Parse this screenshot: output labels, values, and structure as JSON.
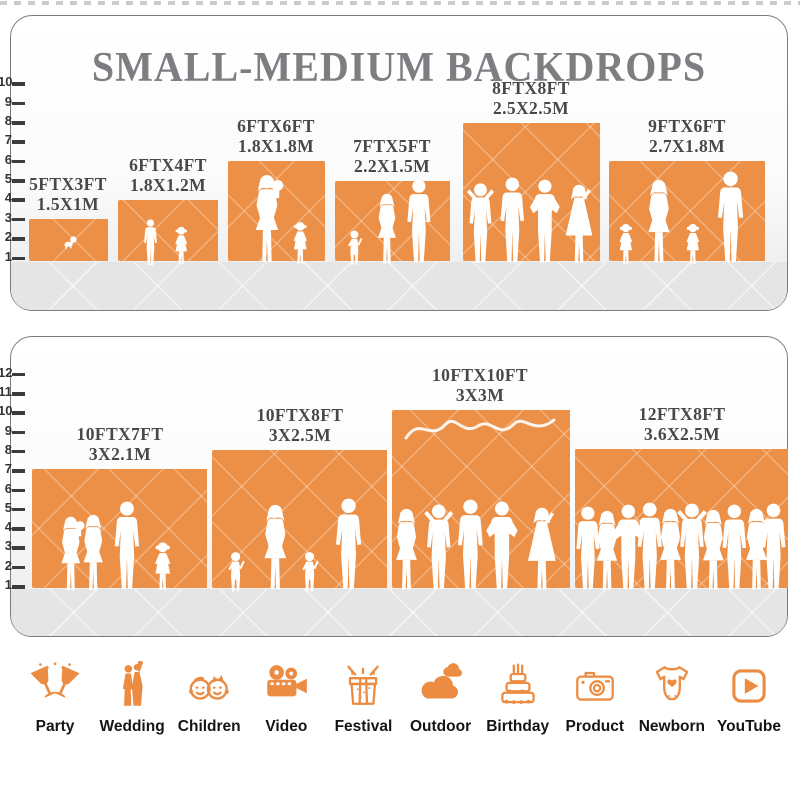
{
  "title": "SMALL-MEDIUM BACKDROPS",
  "top_panel": {
    "ruler_ticks": [
      "1",
      "2",
      "3",
      "4",
      "5",
      "6",
      "7",
      "8",
      "9",
      "10"
    ],
    "items": [
      {
        "size_ft": "5FTX3FT",
        "size_m": "1.5X1M"
      },
      {
        "size_ft": "6FTX4FT",
        "size_m": "1.8X1.2M"
      },
      {
        "size_ft": "6FTX6FT",
        "size_m": "1.8X1.8M"
      },
      {
        "size_ft": "7FTX5FT",
        "size_m": "2.2X1.5M"
      },
      {
        "size_ft": "8FTX8FT",
        "size_m": "2.5X2.5M"
      },
      {
        "size_ft": "9FTX6FT",
        "size_m": "2.7X1.8M"
      }
    ]
  },
  "bottom_panel": {
    "ruler_ticks": [
      "1",
      "2",
      "3",
      "4",
      "5",
      "6",
      "7",
      "8",
      "9",
      "10",
      "11",
      "12"
    ],
    "items": [
      {
        "size_ft": "10FTX7FT",
        "size_m": "3X2.1M"
      },
      {
        "size_ft": "10FTX8FT",
        "size_m": "3X2.5M"
      },
      {
        "size_ft": "10FTX10FT",
        "size_m": "3X3M"
      },
      {
        "size_ft": "12FTX8FT",
        "size_m": "3.6X2.5M"
      }
    ]
  },
  "categories": [
    {
      "label": "Party",
      "icon": "party-glasses-icon"
    },
    {
      "label": "Wedding",
      "icon": "wedding-couple-icon"
    },
    {
      "label": "Children",
      "icon": "children-faces-icon"
    },
    {
      "label": "Video",
      "icon": "video-camera-icon"
    },
    {
      "label": "Festival",
      "icon": "festival-gift-icon"
    },
    {
      "label": "Outdoor",
      "icon": "outdoor-cloud-icon"
    },
    {
      "label": "Birthday",
      "icon": "birthday-cake-icon"
    },
    {
      "label": "Product",
      "icon": "product-camera-icon"
    },
    {
      "label": "Newborn",
      "icon": "newborn-onesie-icon"
    },
    {
      "label": "YouTube",
      "icon": "youtube-play-icon"
    }
  ],
  "colors": {
    "backdrop_orange": "#ED9047",
    "icon_orange": "#EC8C42",
    "title_gray": "#7D7E81",
    "label_charcoal": "#48484B",
    "floor_gray": "#E6E5E5"
  }
}
